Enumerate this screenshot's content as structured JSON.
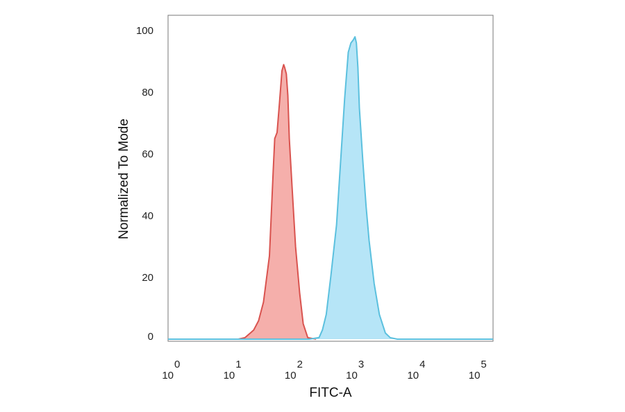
{
  "chart_data": {
    "type": "area",
    "title": "",
    "xlabel": "FITC-A",
    "ylabel": "Normalized To Mode",
    "x_scale": "log",
    "xlim": [
      1,
      200000
    ],
    "ylim": [
      0,
      105
    ],
    "grid": false,
    "legend": "none",
    "x_ticks": [
      {
        "base": "10",
        "exp": "0",
        "value": 1
      },
      {
        "base": "10",
        "exp": "1",
        "value": 10
      },
      {
        "base": "10",
        "exp": "2",
        "value": 100
      },
      {
        "base": "10",
        "exp": "3",
        "value": 1000
      },
      {
        "base": "10",
        "exp": "4",
        "value": 10000
      },
      {
        "base": "10",
        "exp": "5",
        "value": 100000
      }
    ],
    "y_ticks": [
      {
        "label": "0",
        "value": 0
      },
      {
        "label": "20",
        "value": 20
      },
      {
        "label": "40",
        "value": 40
      },
      {
        "label": "60",
        "value": 60
      },
      {
        "label": "80",
        "value": 80
      },
      {
        "label": "100",
        "value": 100
      }
    ],
    "series": [
      {
        "stroke": "#d9534f",
        "fill": "#f4a6a2",
        "x": [
          1,
          14,
          18,
          22,
          25,
          30,
          36,
          45,
          52,
          55,
          60,
          66,
          72,
          77,
          80,
          85,
          90,
          95,
          105,
          120,
          140,
          160,
          190,
          260
        ],
        "y": [
          0,
          0,
          0.5,
          2,
          3,
          6,
          12,
          27,
          55,
          65,
          67,
          77,
          87,
          89,
          88,
          86,
          79,
          65,
          50,
          30,
          15,
          5,
          0.5,
          0
        ]
      },
      {
        "stroke": "#5bc0de",
        "fill": "#aee2f6",
        "x": [
          1,
          200,
          290,
          330,
          380,
          450,
          560,
          650,
          760,
          870,
          960,
          1050,
          1120,
          1180,
          1250,
          1320,
          1500,
          1700,
          1900,
          2300,
          2800,
          3500,
          4200,
          5500,
          200000
        ],
        "y": [
          0,
          0,
          0.5,
          3,
          8,
          20,
          37,
          57,
          78,
          93,
          96,
          97,
          98,
          96,
          88,
          75,
          58,
          43,
          32,
          18,
          8,
          2,
          0.5,
          0,
          0
        ]
      }
    ]
  }
}
